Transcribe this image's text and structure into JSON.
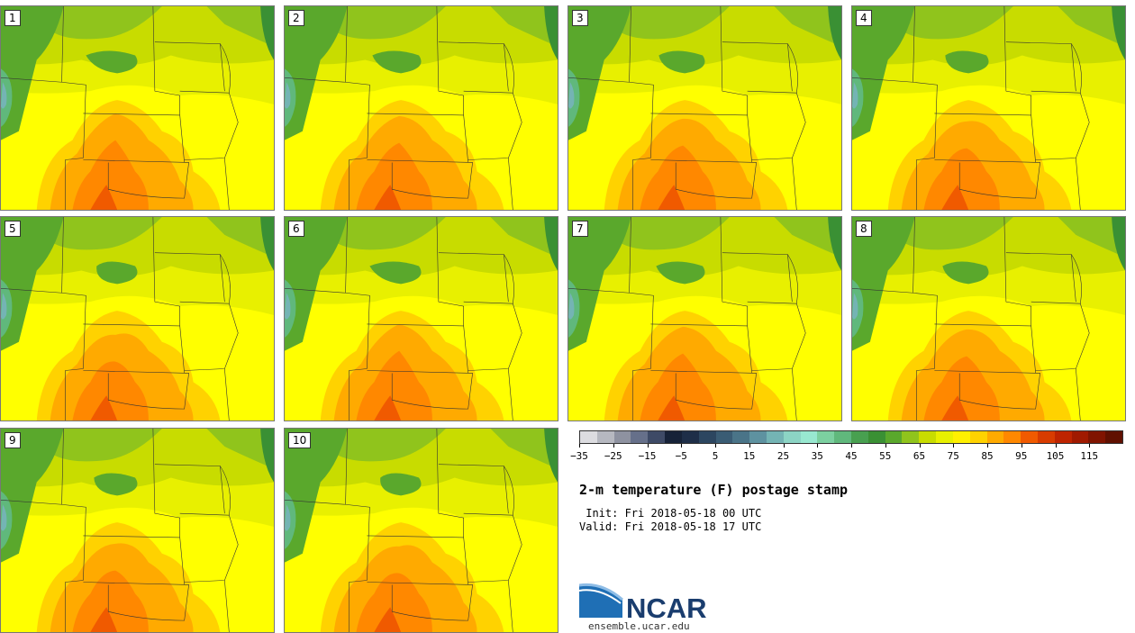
{
  "panels": [
    {
      "label": "1"
    },
    {
      "label": "2"
    },
    {
      "label": "3"
    },
    {
      "label": "4"
    },
    {
      "label": "5"
    },
    {
      "label": "6"
    },
    {
      "label": "7"
    },
    {
      "label": "8"
    },
    {
      "label": "9"
    },
    {
      "label": "10"
    }
  ],
  "colorbar": {
    "colors": [
      "#dcdce0",
      "#b6b8c0",
      "#8e92a0",
      "#66708a",
      "#3e4a66",
      "#162238",
      "#1e2e48",
      "#2c4660",
      "#3a5c74",
      "#4a7488",
      "#5e92a0",
      "#74b4b4",
      "#8cd4c4",
      "#98e8d0",
      "#7cd0a0",
      "#60b87c",
      "#48a050",
      "#3a9034",
      "#5aa82c",
      "#90c41c",
      "#c8dc00",
      "#e8f000",
      "#fff000",
      "#ffd200",
      "#ffaa00",
      "#ff8800",
      "#f05a00",
      "#d83c00",
      "#be2400",
      "#a01a00",
      "#801400",
      "#601000"
    ],
    "tick_labels": [
      "−35",
      "−25",
      "−15",
      "−5",
      "5",
      "15",
      "25",
      "35",
      "45",
      "55",
      "65",
      "75",
      "85",
      "95",
      "105",
      "115"
    ]
  },
  "title": "2-m temperature (F) postage stamp",
  "init_line": " Init: Fri 2018-05-18 00 UTC",
  "valid_line": "Valid: Fri 2018-05-18 17 UTC",
  "logo_text": "NCAR",
  "url": "ensemble.ucar.edu"
}
